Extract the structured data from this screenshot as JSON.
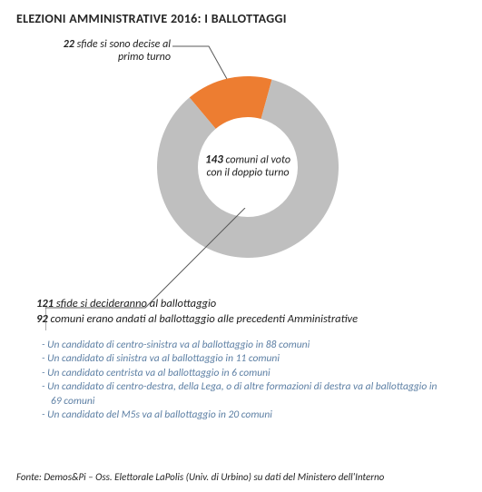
{
  "title": "ELEZIONI AMMINISTRATIVE 2016: I BALLOTTAGGI",
  "chart": {
    "type": "donut",
    "slices": [
      {
        "key": "first_round",
        "value": 22,
        "color": "#ed7d31"
      },
      {
        "key": "runoff",
        "value": 121,
        "color": "#bfbfbf"
      }
    ],
    "inner_radius_ratio": 0.55,
    "start_angle_deg": -40,
    "background_color": "#ffffff"
  },
  "top_annotation": {
    "value": "22",
    "text": " sfide si sono decise al primo turno"
  },
  "center_annotation": {
    "value": "143",
    "text": " comuni al voto con il doppio turno"
  },
  "bottom_bold_1": {
    "value": "121",
    "text": " sfide si decideranno al ballottaggio"
  },
  "bottom_bold_2": {
    "value": "92",
    "text": " comuni erano andati al ballottaggio alle precedenti Amministrative"
  },
  "bullets": [
    "- Un candidato di centro-sinistra va al ballottaggio in 88 comuni",
    "- Un candidato di sinistra va al ballottaggio in 11 comuni",
    "- Un candidato centrista va al ballottaggio in 6 comuni",
    "- Un candidato di centro-destra, della Lega, o di altre formazioni di destra va al ballottaggio in 69 comuni",
    "- Un candidato del M5s va al ballottaggio in 20 comuni"
  ],
  "footer": "Fonte: Demos&Pi – Oss. Elettorale LaPolis (Univ. di Urbino) su dati del Ministero dell'Interno",
  "text_color": "#222222",
  "bullet_color": "#5b7ea3"
}
